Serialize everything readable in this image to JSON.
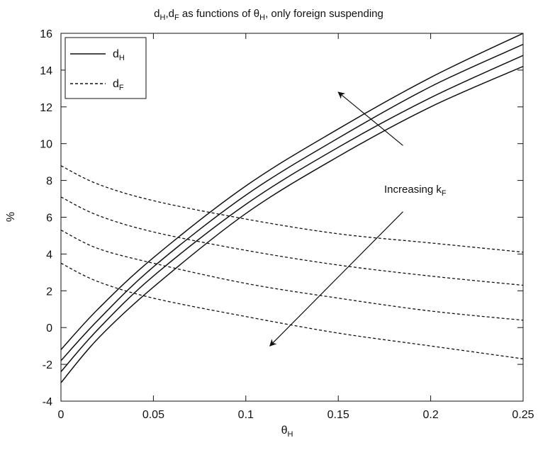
{
  "chart_data": {
    "type": "line",
    "title": {
      "a": "d",
      "a_sub": "H",
      "b": ",d",
      "b_sub": "F",
      "c": " as functions of ",
      "theta": "θ",
      "theta_sub": "H",
      "d": ", only foreign suspending"
    },
    "xlabel": {
      "main": "θ",
      "sub": "H"
    },
    "ylabel": "%",
    "xlim": [
      0,
      0.25
    ],
    "ylim": [
      -4,
      16
    ],
    "x_ticks": [
      "0",
      "0.05",
      "0.1",
      "0.15",
      "0.2",
      "0.25"
    ],
    "x_tick_values": [
      0,
      0.05,
      0.1,
      0.15,
      0.2,
      0.25
    ],
    "y_ticks": [
      "-4",
      "-2",
      "0",
      "2",
      "4",
      "6",
      "8",
      "10",
      "12",
      "14",
      "16"
    ],
    "y_tick_values": [
      -4,
      -2,
      0,
      2,
      4,
      6,
      8,
      10,
      12,
      14,
      16
    ],
    "grid": false,
    "legend": {
      "placement": "top-left",
      "entries": [
        {
          "main": "d",
          "sub": "H",
          "style": "solid"
        },
        {
          "main": "d",
          "sub": "F",
          "style": "dashed"
        }
      ]
    },
    "annotation": {
      "main": "Increasing k",
      "sub": "F"
    },
    "series": [
      {
        "group": "dH",
        "style": "solid",
        "x": [
          0,
          0.02,
          0.05,
          0.1,
          0.15,
          0.2,
          0.25
        ],
        "y": [
          -1.2,
          1.0,
          3.8,
          7.7,
          10.8,
          13.6,
          16.0
        ]
      },
      {
        "group": "dH",
        "style": "solid",
        "x": [
          0,
          0.02,
          0.05,
          0.1,
          0.15,
          0.2,
          0.25
        ],
        "y": [
          -1.8,
          0.4,
          3.3,
          7.2,
          10.3,
          13.1,
          15.4
        ]
      },
      {
        "group": "dH",
        "style": "solid",
        "x": [
          0,
          0.02,
          0.05,
          0.1,
          0.15,
          0.2,
          0.25
        ],
        "y": [
          -2.4,
          -0.1,
          2.8,
          6.7,
          9.8,
          12.5,
          14.8
        ]
      },
      {
        "group": "dH",
        "style": "solid",
        "x": [
          0,
          0.02,
          0.05,
          0.1,
          0.15,
          0.2,
          0.25
        ],
        "y": [
          -3.0,
          -0.6,
          2.2,
          6.2,
          9.3,
          12.0,
          14.2
        ]
      },
      {
        "group": "dF",
        "style": "dashed",
        "x": [
          0,
          0.02,
          0.05,
          0.1,
          0.15,
          0.2,
          0.25
        ],
        "y": [
          8.8,
          7.8,
          6.9,
          5.9,
          5.1,
          4.6,
          4.1
        ]
      },
      {
        "group": "dF",
        "style": "dashed",
        "x": [
          0,
          0.02,
          0.05,
          0.1,
          0.15,
          0.2,
          0.25
        ],
        "y": [
          7.1,
          6.1,
          5.2,
          4.2,
          3.4,
          2.8,
          2.3
        ]
      },
      {
        "group": "dF",
        "style": "dashed",
        "x": [
          0,
          0.02,
          0.05,
          0.1,
          0.15,
          0.2,
          0.25
        ],
        "y": [
          5.3,
          4.3,
          3.5,
          2.4,
          1.6,
          0.9,
          0.4
        ]
      },
      {
        "group": "dF",
        "style": "dashed",
        "x": [
          0,
          0.02,
          0.05,
          0.1,
          0.15,
          0.2,
          0.25
        ],
        "y": [
          3.5,
          2.5,
          1.6,
          0.6,
          -0.3,
          -1.0,
          -1.7
        ]
      }
    ],
    "arrows": [
      {
        "from": [
          0.185,
          9.9
        ],
        "to": [
          0.15,
          12.8
        ]
      },
      {
        "from": [
          0.185,
          6.3
        ],
        "to": [
          0.113,
          -1.0
        ]
      }
    ]
  }
}
